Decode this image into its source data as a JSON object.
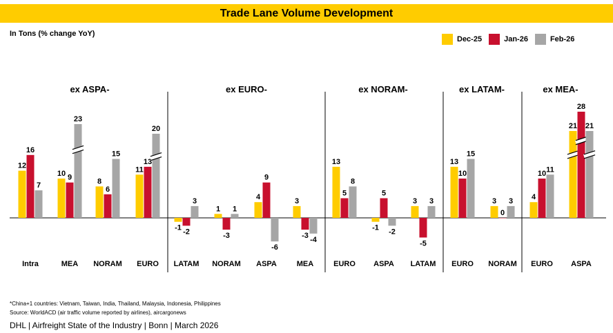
{
  "title": "Trade Lane Volume Development",
  "unit_label": "In Tons (% change YoY)",
  "footnote_1": "*China+1 countries: Vietnam, Taiwan, India, Thailand, Malaysia, Indonesia, Philippines",
  "footnote_2": "Source: WorldACD (air traffic volume reported by airlines), aircargonews",
  "footer": "DHL | Airfreight State of the Industry | Bonn | March 2026",
  "colors": {
    "Dec-25": "#ffcc00",
    "Jan-26": "#c8102e",
    "Feb-26": "#a6a6a6",
    "band": "#ffcc00"
  },
  "chart_data": {
    "type": "bar",
    "series_names": [
      "Dec-25",
      "Jan-26",
      "Feb-26"
    ],
    "legend_position": "top-right",
    "grid": false,
    "axis_break": true,
    "groups": [
      {
        "label": "ex ASPA-",
        "categories": [
          {
            "label": "Intra",
            "values": [
              12,
              16,
              7
            ]
          },
          {
            "label": "MEA",
            "values": [
              10,
              9,
              23
            ],
            "broken": [
              false,
              false,
              true
            ]
          },
          {
            "label": "NORAM",
            "values": [
              8,
              6,
              15
            ]
          },
          {
            "label": "EURO",
            "values": [
              11,
              13,
              20
            ],
            "broken": [
              false,
              false,
              true
            ]
          }
        ]
      },
      {
        "label": "ex EURO-",
        "categories": [
          {
            "label": "LATAM",
            "values": [
              -1,
              -2,
              3
            ]
          },
          {
            "label": "NORAM",
            "values": [
              1,
              -3,
              1
            ]
          },
          {
            "label": "ASPA",
            "values": [
              4,
              9,
              -6
            ]
          },
          {
            "label": "MEA",
            "values": [
              3,
              -3,
              -4
            ]
          }
        ]
      },
      {
        "label": "ex NORAM-",
        "categories": [
          {
            "label": "EURO",
            "values": [
              13,
              5,
              8
            ]
          },
          {
            "label": "ASPA",
            "values": [
              -1,
              5,
              -2
            ]
          },
          {
            "label": "LATAM",
            "values": [
              3,
              -5,
              3
            ]
          }
        ]
      },
      {
        "label": "ex LATAM-",
        "categories": [
          {
            "label": "EURO",
            "values": [
              13,
              10,
              15
            ]
          },
          {
            "label": "NORAM",
            "values": [
              3,
              0,
              3
            ]
          }
        ]
      },
      {
        "label": "ex MEA-",
        "categories": [
          {
            "label": "EURO",
            "values": [
              4,
              10,
              11
            ]
          },
          {
            "label": "ASPA",
            "values": [
              21,
              28,
              21
            ],
            "broken": [
              true,
              true,
              true
            ]
          }
        ]
      }
    ]
  }
}
